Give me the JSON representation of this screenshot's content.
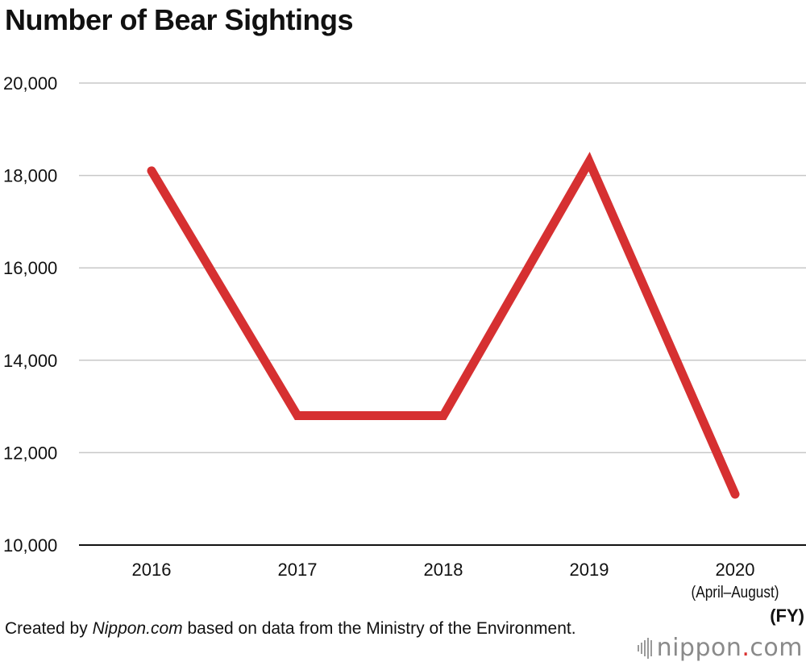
{
  "chart_data": {
    "type": "line",
    "title": "Number of Bear Sightings",
    "categories": [
      "2016",
      "2017",
      "2018",
      "2019",
      "2020"
    ],
    "category_sublabels": [
      "",
      "",
      "",
      "",
      "(April–August)"
    ],
    "xlabel": "(FY)",
    "ylabel": "",
    "ylim": [
      10000,
      20000
    ],
    "yticks": [
      10000,
      12000,
      14000,
      16000,
      18000,
      20000
    ],
    "ytick_labels": [
      "10,000",
      "12,000",
      "14,000",
      "16,000",
      "18,000",
      "20,000"
    ],
    "grid": true,
    "series": [
      {
        "values": [
          18100,
          12800,
          12800,
          18300,
          11100
        ],
        "color": "#d63031"
      }
    ]
  },
  "source": {
    "prefix": "Created by ",
    "brand": "Nippon.com",
    "suffix": " based on data from the Ministry of the Environment."
  },
  "logo": {
    "name": "nippon",
    "dot": ".",
    "tld": "com",
    "icon": "sound-bars-icon"
  }
}
